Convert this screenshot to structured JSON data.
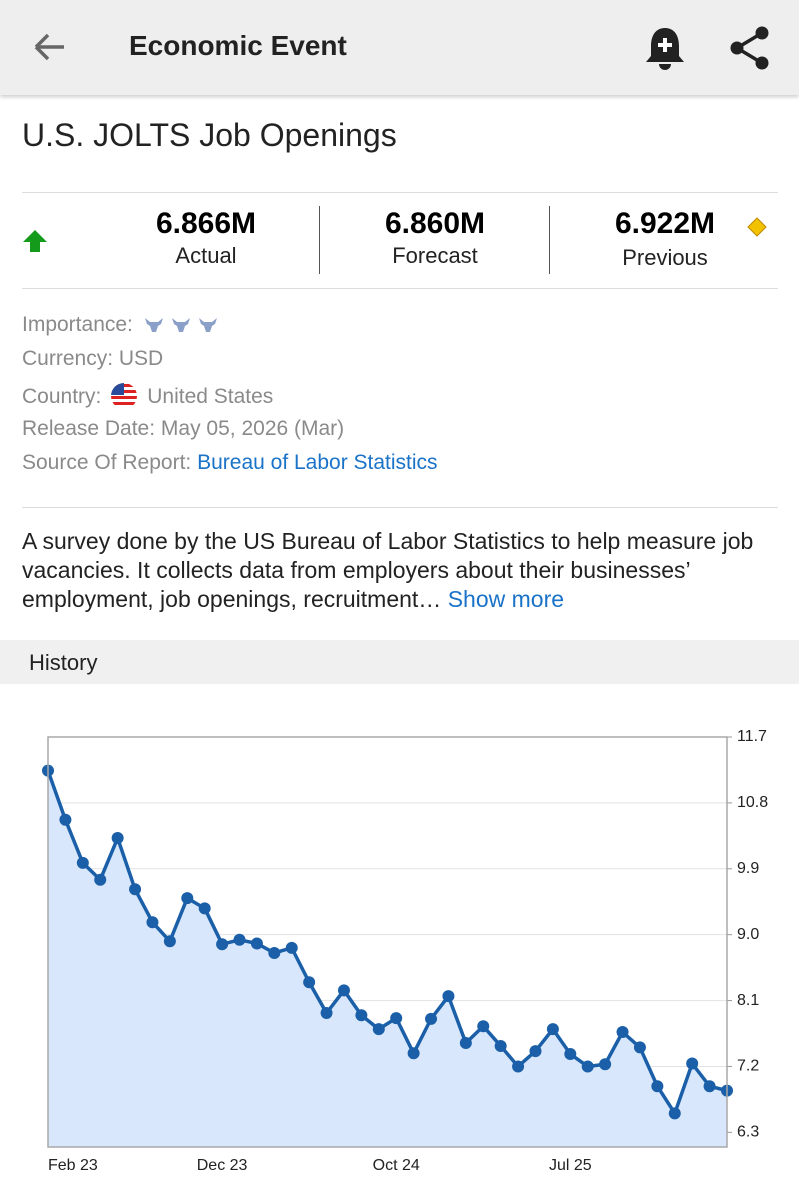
{
  "header": {
    "title": "Economic Event"
  },
  "event": {
    "name": "U.S. JOLTS Job Openings",
    "stats": [
      {
        "value": "6.866M",
        "label": "Actual",
        "color": "#159b1b"
      },
      {
        "value": "6.860M",
        "label": "Forecast",
        "color": "#111111"
      },
      {
        "value": "6.922M",
        "label": "Previous",
        "color": "#159b1b"
      }
    ],
    "info": [
      {
        "label": "Importance:"
      },
      {
        "label": "Currency:",
        "value": "USD"
      },
      {
        "label": "Country:",
        "value": "United States"
      },
      {
        "label": "Release Date:",
        "value": "May 05, 2026 (Mar)"
      },
      {
        "label": "Source Of Report:",
        "value": "Bureau of Labor Statistics"
      }
    ],
    "description": "A survey done by the US Bureau of Labor Statistics to help measure job vacancies. It collects data from employers about their businesses’ employment, job openings, recruitment…",
    "show_more": "Show more"
  },
  "history": {
    "title": "History"
  },
  "chart_data": {
    "type": "area",
    "categories": [
      "Feb 23",
      null,
      null,
      null,
      null,
      null,
      null,
      null,
      null,
      null,
      "Dec 23",
      null,
      null,
      null,
      null,
      null,
      null,
      null,
      null,
      null,
      "Oct 24",
      null,
      null,
      null,
      null,
      null,
      null,
      null,
      null,
      null,
      "Jul 25",
      null,
      null,
      null,
      null,
      null,
      null,
      null,
      null,
      null
    ],
    "series": [
      {
        "color": "#1a5fa8",
        "fill": "#d8e7fb",
        "values": [
          11.24,
          10.57,
          9.98,
          9.75,
          10.32,
          9.62,
          9.17,
          8.91,
          9.5,
          9.36,
          8.87,
          8.93,
          8.88,
          8.75,
          8.82,
          8.35,
          7.93,
          8.24,
          7.9,
          7.71,
          7.86,
          7.38,
          7.85,
          8.16,
          7.52,
          7.75,
          7.48,
          7.2,
          7.41,
          7.71,
          7.37,
          7.2,
          7.23,
          7.67,
          7.46,
          6.93,
          6.56,
          7.24,
          6.93,
          6.87
        ]
      }
    ],
    "ylim": [
      6.1,
      11.7
    ],
    "yticks": [
      6.3,
      7.2,
      8.1,
      {
        "value": 9,
        "label": "9.0"
      },
      9.9,
      10.8,
      11.7
    ],
    "grid": true
  }
}
